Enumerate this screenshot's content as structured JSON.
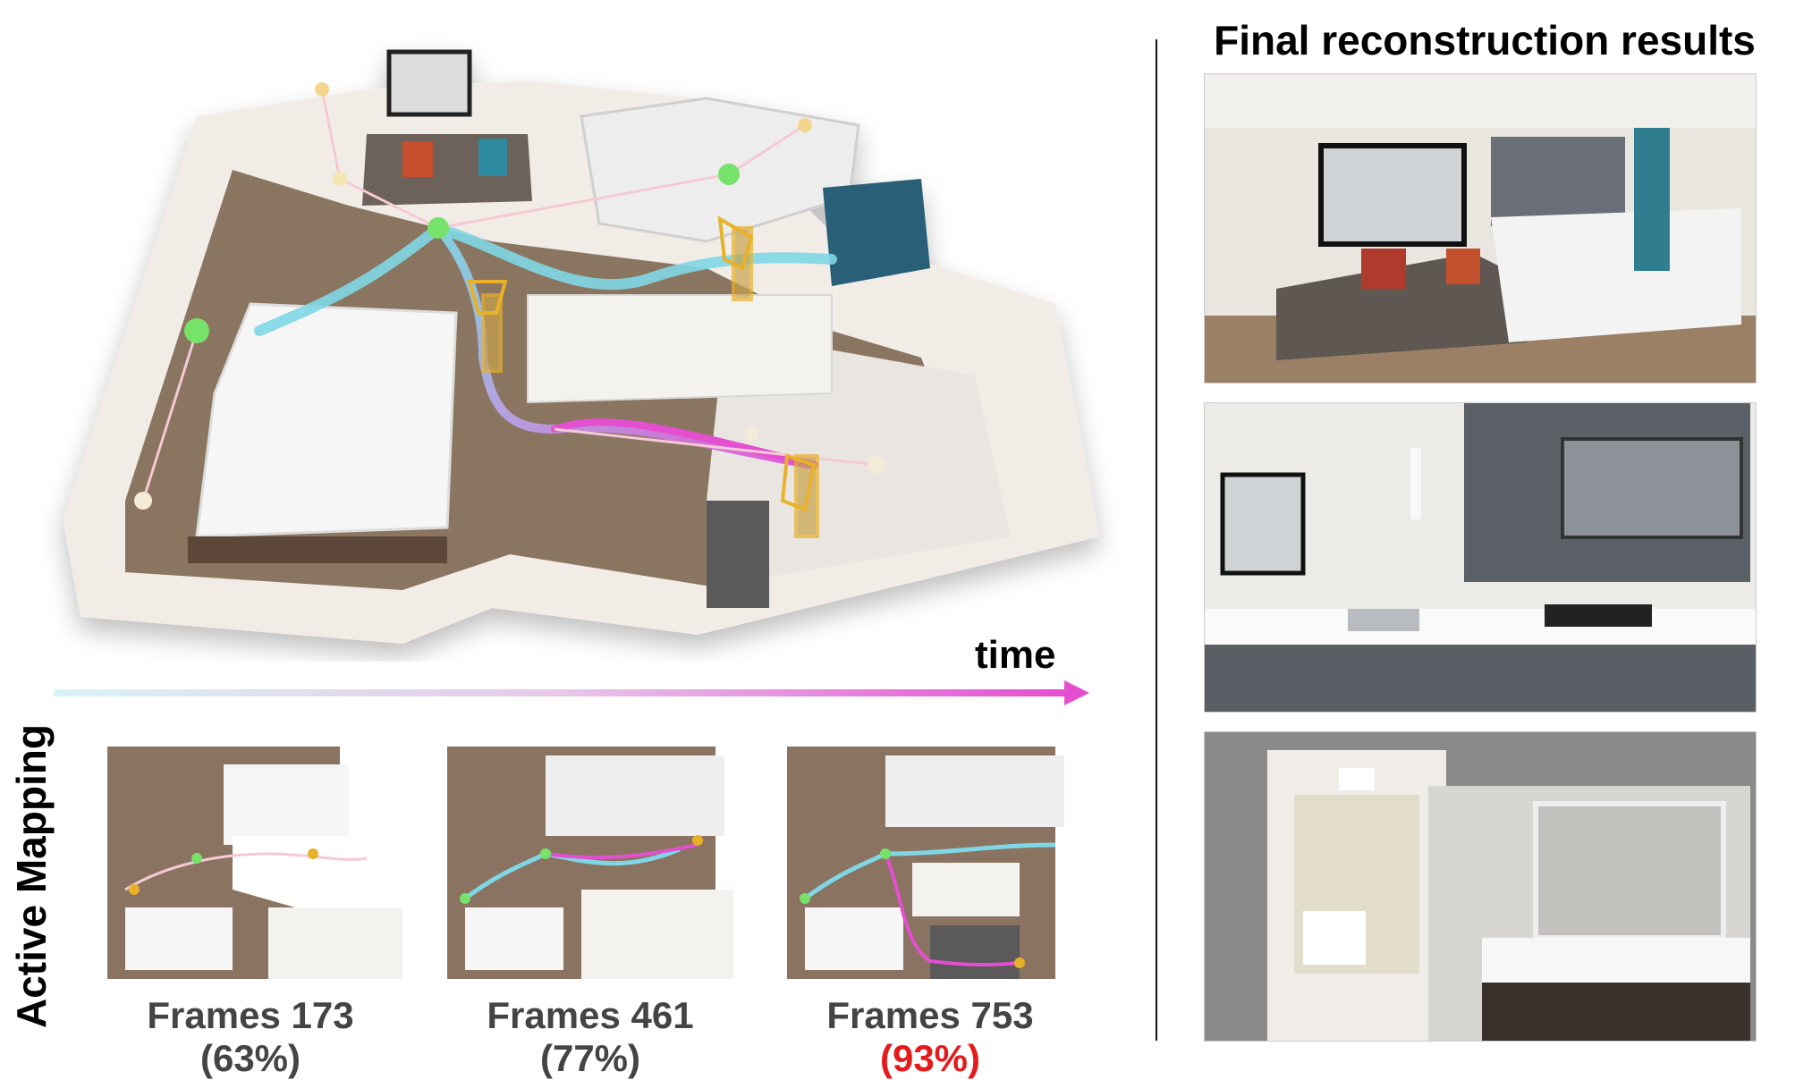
{
  "figure": {
    "time_label": "time",
    "side_label": "Active Mapping",
    "right_title": "Final reconstruction results",
    "snapshots": [
      {
        "frames_label": "Frames 173",
        "pct_label": "(63%)",
        "pct_color": "#444444"
      },
      {
        "frames_label": "Frames 461",
        "pct_label": "(77%)",
        "pct_color": "#444444"
      },
      {
        "frames_label": "Frames 753",
        "pct_label": "(93%)",
        "pct_color": "#e41a1c"
      }
    ],
    "colors": {
      "trajectory_start": "#7fd7e6",
      "trajectory_mid": "#b9a1e6",
      "trajectory_end": "#e44fd0",
      "node_green": "#76e26a",
      "node_yellow": "#f4d58d",
      "camera_gold": "#e8b12a",
      "arrow_start": "#d9f3f6",
      "arrow_end": "#e44fd0",
      "floor": "#8a7461"
    }
  }
}
